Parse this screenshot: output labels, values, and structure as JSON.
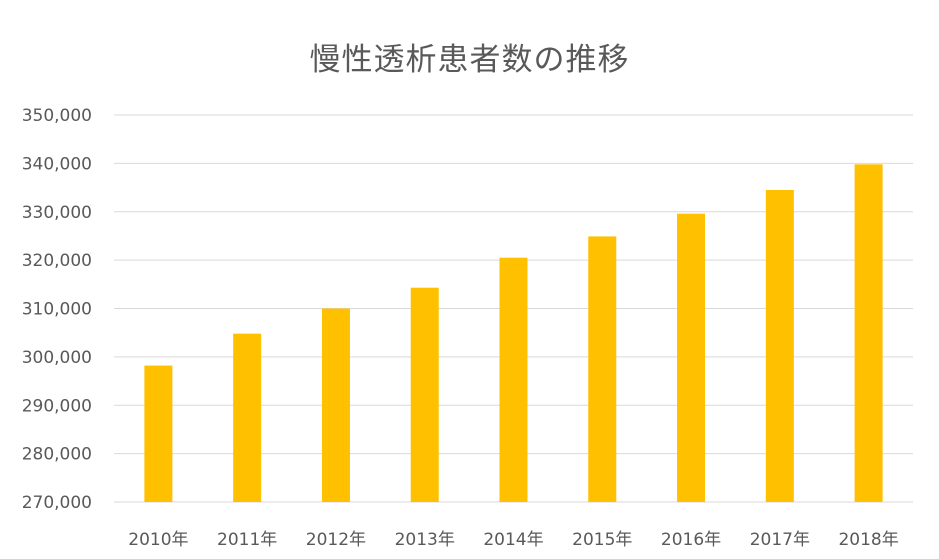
{
  "chart_data": {
    "type": "bar",
    "title": "慢性透析患者数の推移",
    "xlabel": "",
    "ylabel": "",
    "categories": [
      "2010年",
      "2011年",
      "2012年",
      "2013年",
      "2014年",
      "2015年",
      "2016年",
      "2017年",
      "2018年"
    ],
    "values": [
      298200,
      304800,
      310000,
      314300,
      320500,
      324900,
      329600,
      334500,
      339800
    ],
    "ylim": [
      270000,
      350000
    ],
    "yticks": [
      "270,000",
      "280,000",
      "290,000",
      "300,000",
      "310,000",
      "320,000",
      "330,000",
      "340,000",
      "350,000"
    ],
    "ytick_values": [
      270000,
      280000,
      290000,
      300000,
      310000,
      320000,
      330000,
      340000,
      350000
    ],
    "bar_color": "#ffc000",
    "grid": true,
    "legend": "none"
  }
}
